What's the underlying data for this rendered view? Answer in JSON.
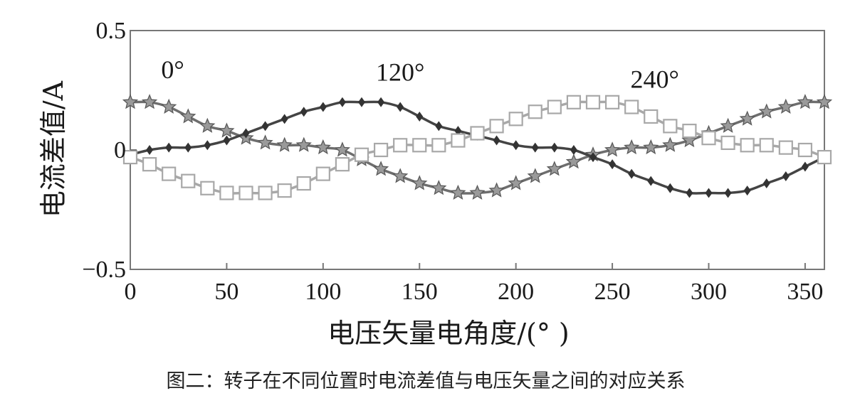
{
  "chart_data": {
    "type": "line",
    "xlabel": "电压矢量电角度/(°  )",
    "ylabel": "电流差值/A",
    "xlim": [
      0,
      360
    ],
    "ylim": [
      -0.5,
      0.5
    ],
    "x_ticks": [
      "0",
      "50",
      "100",
      "150",
      "200",
      "250",
      "300",
      "350"
    ],
    "y_ticks": [
      "0.5",
      "0",
      "−0.5"
    ],
    "grid": false,
    "annotations": [
      {
        "text": "0°",
        "x": 22,
        "y": 0.3
      },
      {
        "text": "120°",
        "x": 140,
        "y": 0.29
      },
      {
        "text": "240°",
        "x": 272,
        "y": 0.26
      }
    ],
    "x": [
      0,
      10,
      20,
      30,
      40,
      50,
      60,
      70,
      80,
      90,
      100,
      110,
      120,
      130,
      140,
      150,
      160,
      170,
      180,
      190,
      200,
      210,
      220,
      230,
      240,
      250,
      260,
      270,
      280,
      290,
      300,
      310,
      320,
      330,
      340,
      350,
      360
    ],
    "series": [
      {
        "marker": "star",
        "color": "#6e6e6e",
        "values": [
          0.2,
          0.2,
          0.18,
          0.14,
          0.1,
          0.08,
          0.05,
          0.03,
          0.02,
          0.02,
          0.01,
          0,
          -0.04,
          -0.08,
          -0.11,
          -0.14,
          -0.16,
          -0.18,
          -0.18,
          -0.17,
          -0.14,
          -0.11,
          -0.08,
          -0.05,
          -0.02,
          0,
          0.01,
          0.01,
          0.02,
          0.04,
          0.07,
          0.1,
          0.13,
          0.16,
          0.18,
          0.2,
          0.2
        ]
      },
      {
        "marker": "diamond",
        "color": "#444444",
        "values": [
          -0.02,
          0,
          0.01,
          0.01,
          0.02,
          0.04,
          0.07,
          0.1,
          0.13,
          0.16,
          0.18,
          0.2,
          0.2,
          0.2,
          0.18,
          0.14,
          0.1,
          0.08,
          0.06,
          0.04,
          0.02,
          0.01,
          0.01,
          0,
          -0.03,
          -0.06,
          -0.1,
          -0.13,
          -0.16,
          -0.18,
          -0.18,
          -0.18,
          -0.17,
          -0.14,
          -0.11,
          -0.07,
          -0.03
        ]
      },
      {
        "marker": "square",
        "color": "#a8a8a8",
        "values": [
          -0.03,
          -0.06,
          -0.1,
          -0.13,
          -0.16,
          -0.18,
          -0.18,
          -0.18,
          -0.17,
          -0.14,
          -0.1,
          -0.06,
          -0.02,
          0,
          0.02,
          0.02,
          0.02,
          0.04,
          0.07,
          0.1,
          0.13,
          0.16,
          0.18,
          0.2,
          0.2,
          0.2,
          0.18,
          0.14,
          0.1,
          0.08,
          0.05,
          0.03,
          0.02,
          0.02,
          0.01,
          0,
          -0.03
        ]
      }
    ]
  },
  "caption": "图二：转子在不同位置时电流差值与电压矢量之间的对应关系"
}
